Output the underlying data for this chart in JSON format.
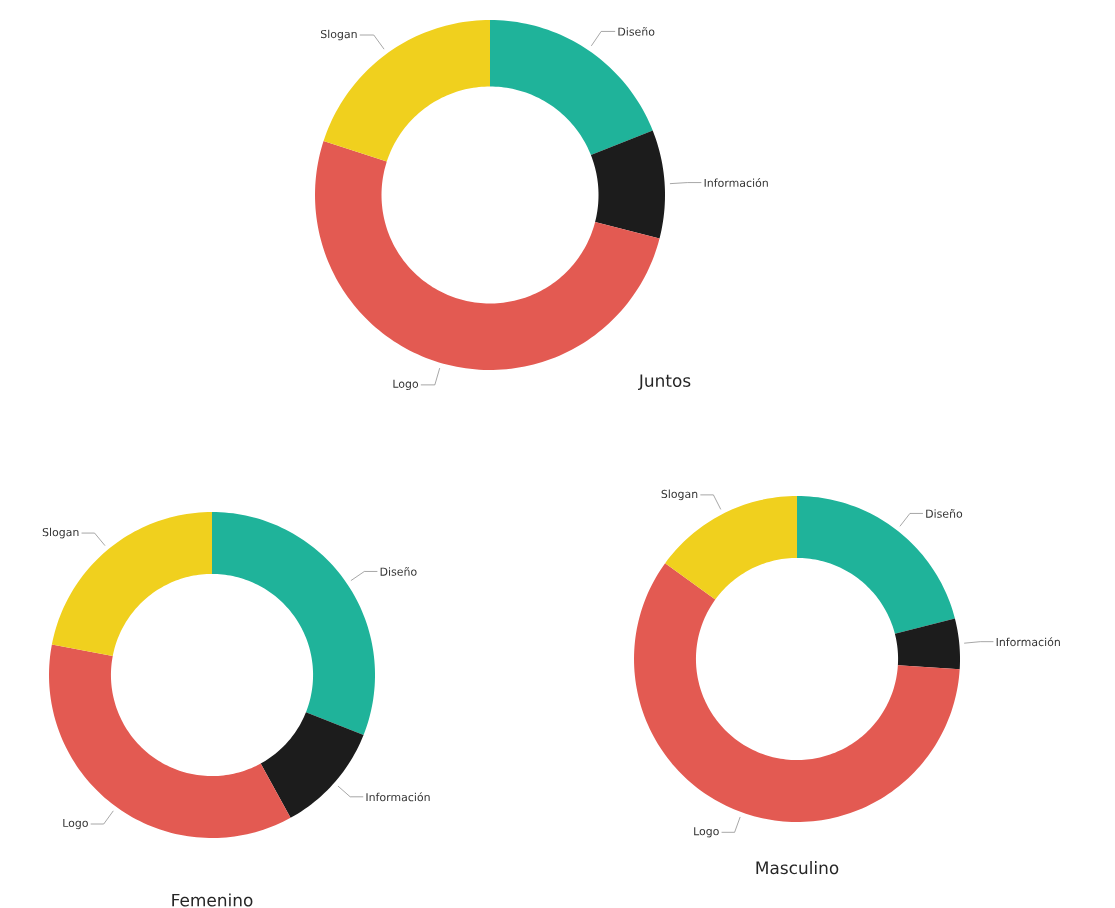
{
  "chart_data": [
    {
      "type": "donut",
      "title": "Juntos",
      "categories": [
        "Diseño",
        "Información",
        "Logo",
        "Slogan"
      ],
      "values": [
        19,
        10,
        51,
        20
      ],
      "colors": [
        "#1fb39a",
        "#1c1c1c",
        "#e35a52",
        "#f0d01e"
      ]
    },
    {
      "type": "donut",
      "title": "Femenino",
      "categories": [
        "Diseño",
        "Información",
        "Logo",
        "Slogan"
      ],
      "values": [
        31,
        11,
        36,
        22
      ],
      "colors": [
        "#1fb39a",
        "#1c1c1c",
        "#e35a52",
        "#f0d01e"
      ]
    },
    {
      "type": "donut",
      "title": "Masculino",
      "categories": [
        "Diseño",
        "Información",
        "Logo",
        "Slogan"
      ],
      "values": [
        21,
        5,
        59,
        15
      ],
      "colors": [
        "#1fb39a",
        "#1c1c1c",
        "#e35a52",
        "#f0d01e"
      ]
    }
  ]
}
